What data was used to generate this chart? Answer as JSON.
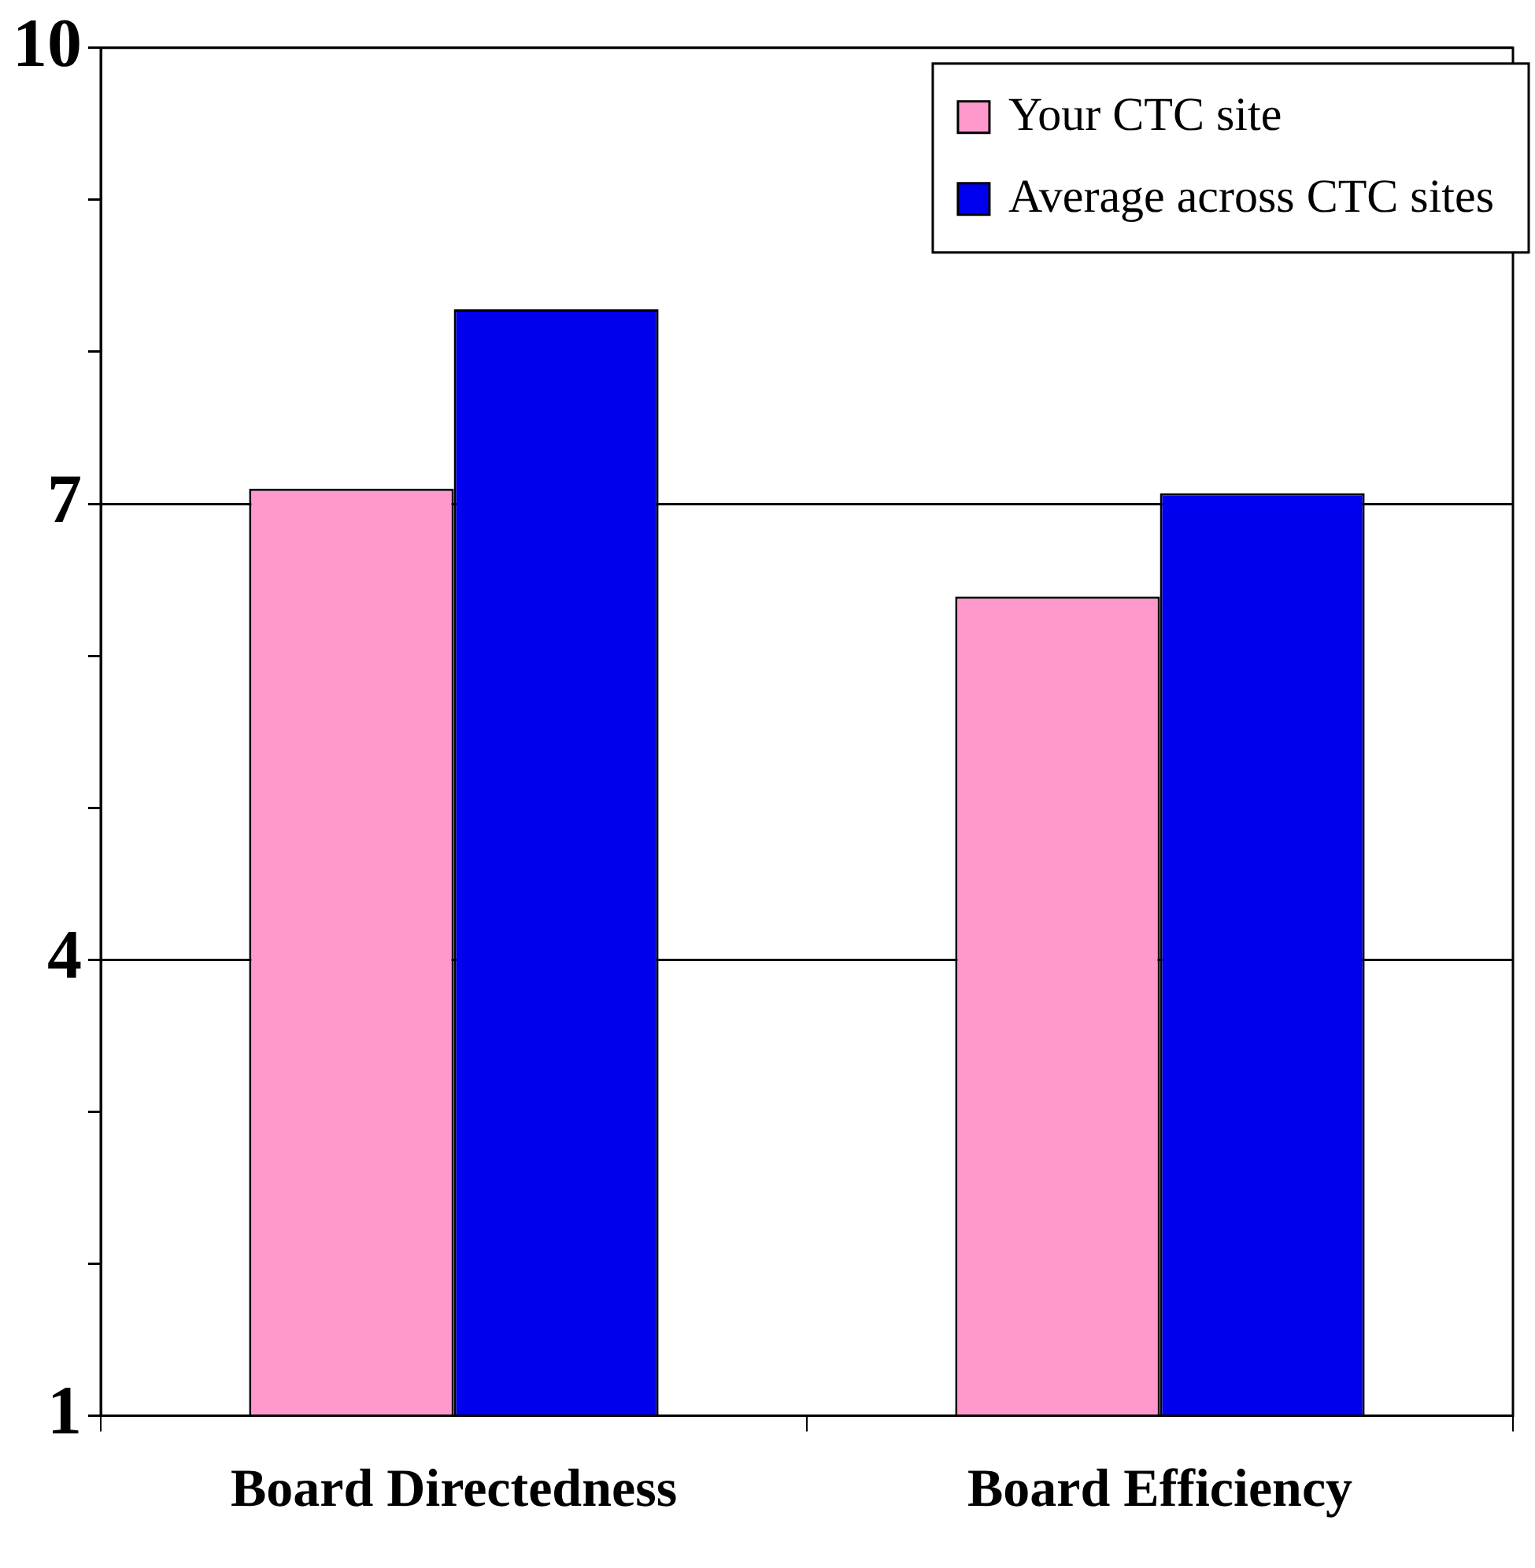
{
  "chart_data": {
    "type": "bar",
    "categories": [
      "Board Directedness",
      "Board Efficiency"
    ],
    "series": [
      {
        "name": "Your CTC site",
        "color": "#ff99cc",
        "values": [
          7.1,
          6.39
        ]
      },
      {
        "name": "Average across CTC sites",
        "color": "#0000ee",
        "values": [
          8.28,
          7.07
        ]
      }
    ],
    "ylim": [
      1,
      10
    ],
    "yticks": [
      1,
      {
        "value": 2,
        "label": null
      },
      {
        "value": 3,
        "label": null
      },
      4,
      {
        "value": 5,
        "label": null
      },
      {
        "value": 6,
        "label": null
      },
      7,
      {
        "value": 8,
        "label": null
      },
      {
        "value": 9,
        "label": null
      },
      10
    ],
    "grid": "y",
    "legend": "top right"
  }
}
